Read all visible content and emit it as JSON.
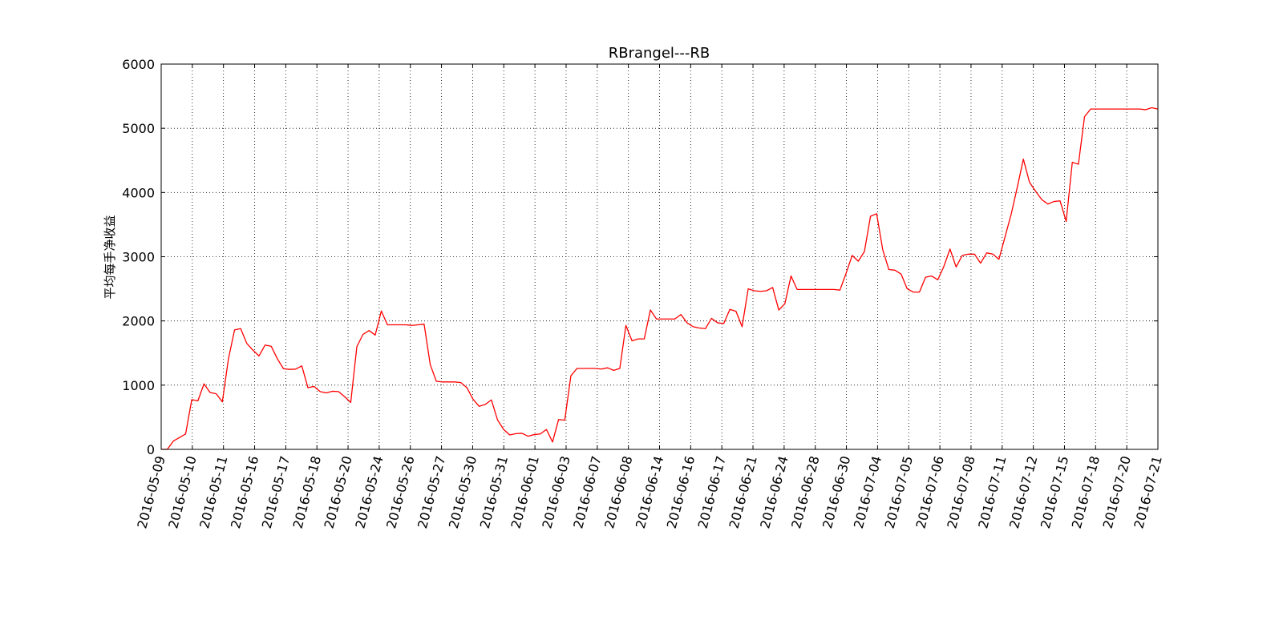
{
  "chart_data": {
    "type": "line",
    "title": "RBrangel---RB",
    "xlabel": "",
    "ylabel": "平均每手净收益",
    "ylim": [
      0,
      6000
    ],
    "y_ticks": [
      0,
      1000,
      2000,
      3000,
      4000,
      5000,
      6000
    ],
    "grid": true,
    "x_tick_labels": [
      "2016-05-09",
      "2016-05-10",
      "2016-05-11",
      "2016-05-16",
      "2016-05-17",
      "2016-05-18",
      "2016-05-20",
      "2016-05-24",
      "2016-05-26",
      "2016-05-27",
      "2016-05-30",
      "2016-05-31",
      "2016-06-01",
      "2016-06-03",
      "2016-06-07",
      "2016-06-08",
      "2016-06-14",
      "2016-06-16",
      "2016-06-17",
      "2016-06-21",
      "2016-06-24",
      "2016-06-28",
      "2016-06-30",
      "2016-07-04",
      "2016-07-05",
      "2016-07-06",
      "2016-07-08",
      "2016-07-11",
      "2016-07-12",
      "2016-07-15",
      "2016-07-18",
      "2016-07-20",
      "2016-07-21"
    ],
    "series": [
      {
        "color": "#ff0000",
        "values": [
          0,
          0,
          130,
          185,
          240,
          775,
          755,
          1020,
          885,
          865,
          740,
          1410,
          1860,
          1880,
          1650,
          1545,
          1455,
          1625,
          1605,
          1410,
          1255,
          1245,
          1250,
          1300,
          960,
          980,
          900,
          880,
          905,
          900,
          820,
          730,
          1600,
          1790,
          1850,
          1780,
          2155,
          1940,
          1940,
          1940,
          1940,
          1930,
          1940,
          1950,
          1320,
          1060,
          1050,
          1050,
          1050,
          1040,
          960,
          780,
          670,
          700,
          770,
          460,
          310,
          225,
          245,
          250,
          205,
          230,
          240,
          310,
          115,
          465,
          455,
          1145,
          1260,
          1260,
          1260,
          1260,
          1250,
          1270,
          1230,
          1260,
          1930,
          1690,
          1720,
          1720,
          2170,
          2030,
          2030,
          2030,
          2030,
          2100,
          1970,
          1910,
          1890,
          1880,
          2040,
          1970,
          1960,
          2180,
          2150,
          1910,
          2500,
          2470,
          2460,
          2470,
          2520,
          2170,
          2270,
          2700,
          2490,
          2490,
          2490,
          2490,
          2490,
          2490,
          2490,
          2480,
          2740,
          3020,
          2930,
          3080,
          3630,
          3670,
          3110,
          2800,
          2790,
          2730,
          2500,
          2450,
          2450,
          2680,
          2700,
          2640,
          2850,
          3120,
          2840,
          3020,
          3040,
          3040,
          2900,
          3060,
          3040,
          2960,
          3310,
          3660,
          4080,
          4520,
          4160,
          4020,
          3890,
          3820,
          3860,
          3870,
          3550,
          4470,
          4440,
          5180,
          5300,
          5300,
          5300,
          5300,
          5300,
          5300,
          5300,
          5300,
          5300,
          5290,
          5320,
          5300
        ]
      }
    ]
  }
}
